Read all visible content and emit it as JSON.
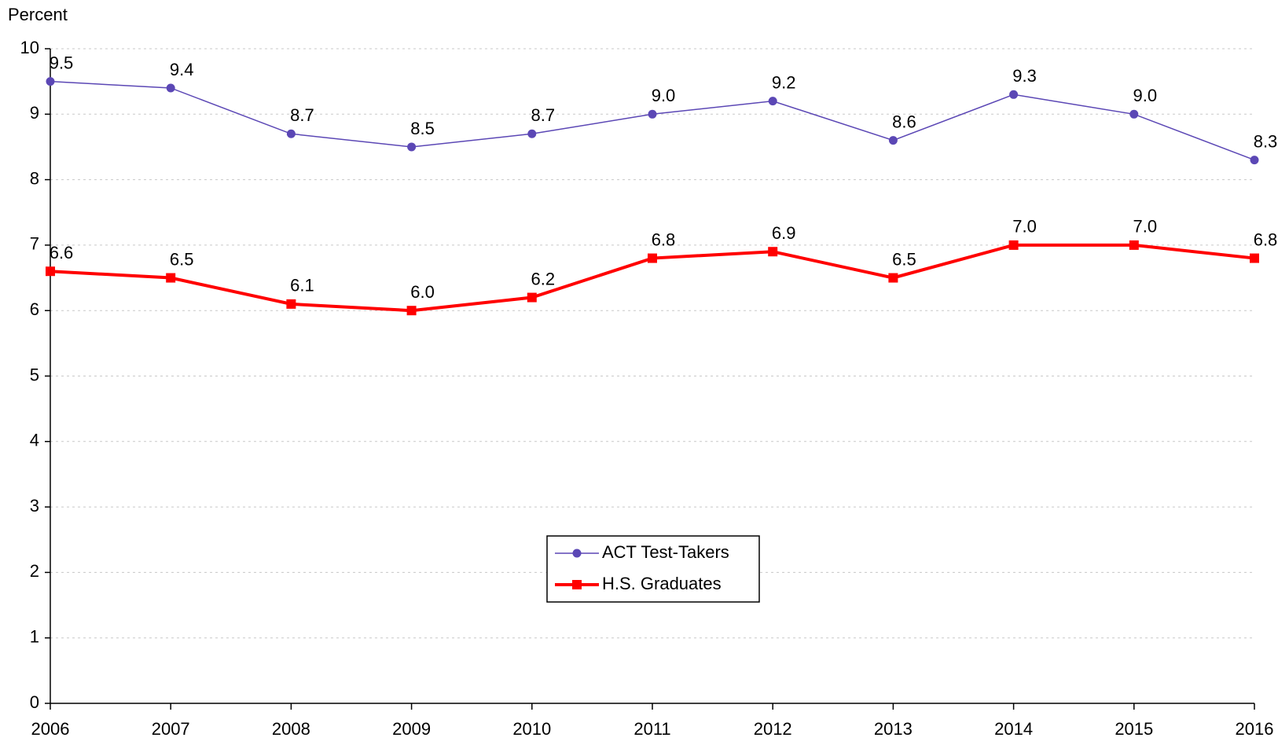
{
  "chart_data": {
    "type": "line",
    "y_label": "Percent",
    "x": [
      2006,
      2007,
      2008,
      2009,
      2010,
      2011,
      2012,
      2013,
      2014,
      2015,
      2016
    ],
    "xlim": [
      2006,
      2016
    ],
    "xticks": [
      2006,
      2007,
      2008,
      2009,
      2010,
      2011,
      2012,
      2013,
      2014,
      2015,
      2016
    ],
    "ylim": [
      0,
      10
    ],
    "yticks": [
      0,
      1,
      2,
      3,
      4,
      5,
      6,
      7,
      8,
      9,
      10
    ],
    "grid": true,
    "legend": "center",
    "series": [
      {
        "name": "ACT Test-Takers",
        "color": "#5b47b5",
        "marker": "circle",
        "values": [
          9.5,
          9.4,
          8.7,
          8.5,
          8.7,
          9.0,
          9.2,
          8.6,
          9.3,
          9.0,
          8.3
        ],
        "value_labels": [
          "9.5",
          "9.4",
          "8.7",
          "8.5",
          "8.7",
          "9.0",
          "9.2",
          "8.6",
          "9.3",
          "9.0",
          "8.3"
        ]
      },
      {
        "name": "H.S. Graduates",
        "color": "#ff0000",
        "marker": "square",
        "values": [
          6.6,
          6.5,
          6.1,
          6.0,
          6.2,
          6.8,
          6.9,
          6.5,
          7.0,
          7.0,
          6.8
        ],
        "value_labels": [
          "6.6",
          "6.5",
          "6.1",
          "6.0",
          "6.2",
          "6.8",
          "6.9",
          "6.5",
          "7.0",
          "7.0",
          "6.8"
        ]
      }
    ]
  }
}
